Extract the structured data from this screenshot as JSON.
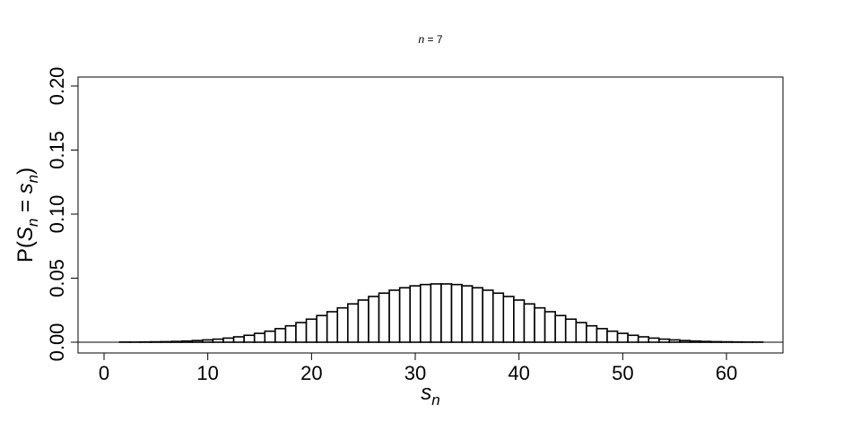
{
  "chart_data": {
    "type": "bar",
    "title_var": "n",
    "title_eq": " = 7",
    "ylabel_prefix": "P(",
    "ylabel_var1": "S",
    "ylabel_sub1": "n",
    "ylabel_eq": " = ",
    "ylabel_var2": "s",
    "ylabel_sub2": "n",
    "ylabel_suffix": ")",
    "xlabel_var": "s",
    "xlabel_sub": "n",
    "xlim": [
      -0.5,
      63.5
    ],
    "ylim": [
      0,
      0.2
    ],
    "x_ticks": [
      "0",
      "10",
      "20",
      "30",
      "40",
      "50",
      "60"
    ],
    "y_ticks": [
      "0.00",
      "0.05",
      "0.10",
      "0.15",
      "0.20"
    ],
    "reference_line_y": 0,
    "x": [
      0,
      1,
      2,
      3,
      4,
      5,
      6,
      7,
      8,
      9,
      10,
      11,
      12,
      13,
      14,
      15,
      16,
      17,
      18,
      19,
      20,
      21,
      22,
      23,
      24,
      25,
      26,
      27,
      28,
      29,
      30,
      31,
      32,
      33,
      34,
      35,
      36,
      37,
      38,
      39,
      40,
      41,
      42,
      43,
      44,
      45,
      46,
      47,
      48,
      49,
      50,
      51,
      52,
      53,
      54,
      55,
      56,
      57,
      58,
      59,
      60,
      61,
      62,
      63
    ],
    "values": [
      0.0,
      0.0,
      0.0001,
      0.0001,
      0.0002,
      0.0003,
      0.0004,
      0.0006,
      0.0009,
      0.0013,
      0.0018,
      0.0024,
      0.0032,
      0.0042,
      0.0054,
      0.0069,
      0.0086,
      0.0106,
      0.0128,
      0.0153,
      0.018,
      0.0208,
      0.0238,
      0.0268,
      0.0299,
      0.0329,
      0.0357,
      0.0383,
      0.0406,
      0.0425,
      0.044,
      0.045,
      0.0455,
      0.0455,
      0.045,
      0.044,
      0.0425,
      0.0406,
      0.0383,
      0.0357,
      0.0329,
      0.0299,
      0.0268,
      0.0238,
      0.0208,
      0.018,
      0.0153,
      0.0128,
      0.0106,
      0.0086,
      0.0069,
      0.0054,
      0.0042,
      0.0032,
      0.0024,
      0.0018,
      0.0013,
      0.0009,
      0.0006,
      0.0004,
      0.0003,
      0.0002,
      0.0001,
      0.0001
    ]
  }
}
